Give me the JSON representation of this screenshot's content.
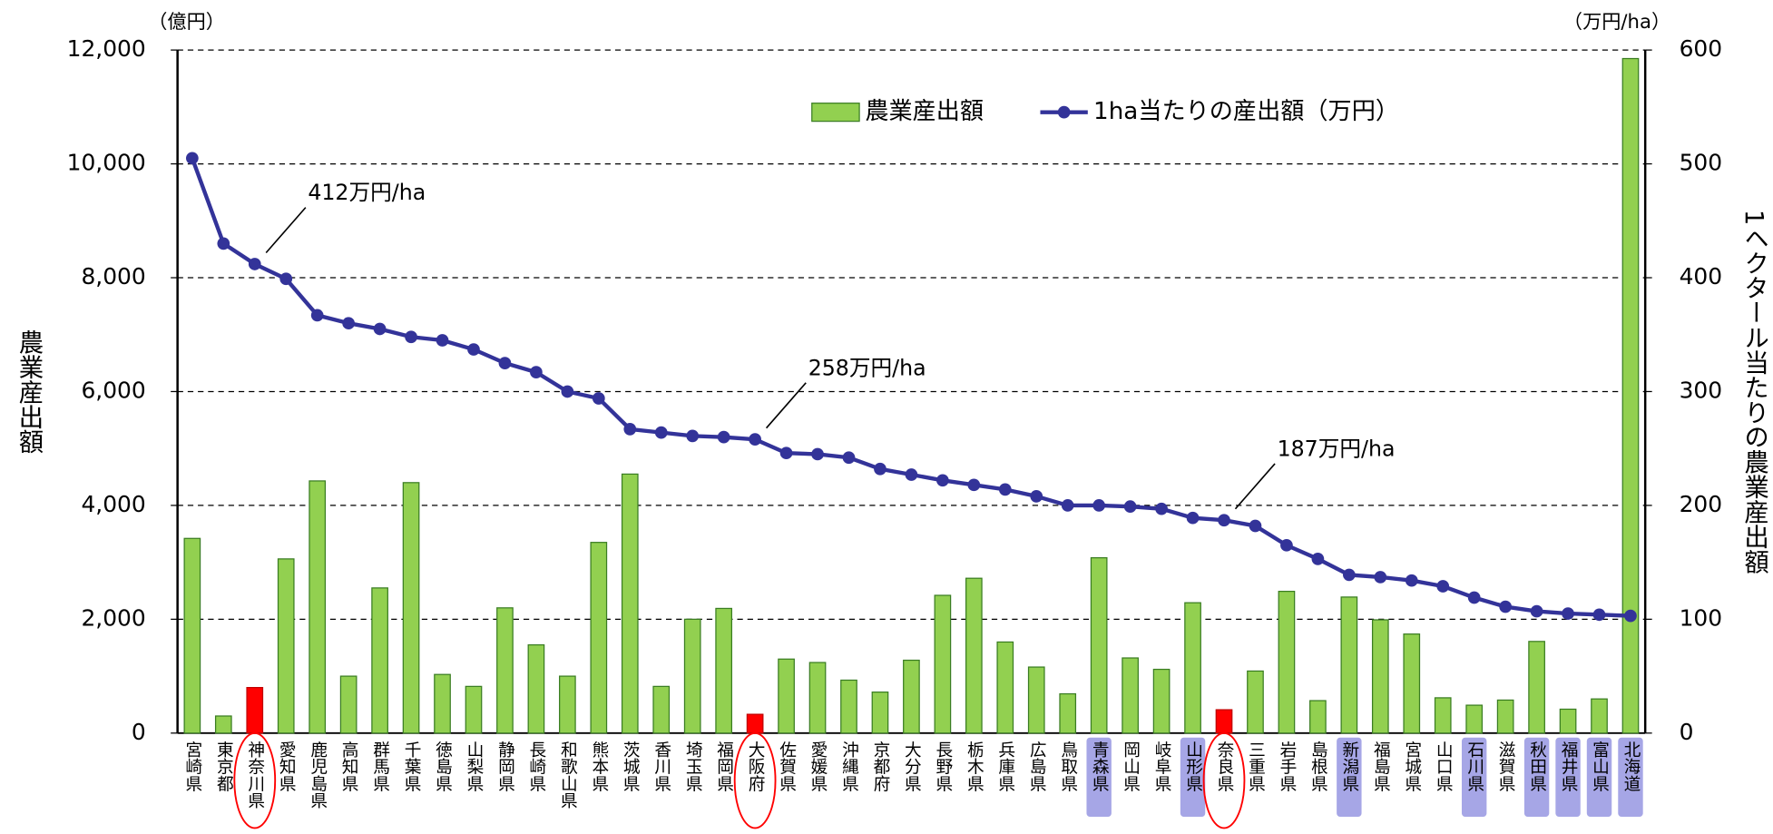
{
  "chart_data": {
    "type": "bar_line",
    "left_unit": "（億円）",
    "right_unit": "（万円/ha）",
    "y_label": "農業産出額",
    "y2_label": "1ヘクタール当たりの農業産出額",
    "categories": [
      "宮崎県",
      "東京都",
      "神奈川県",
      "愛知県",
      "鹿児島県",
      "高知県",
      "群馬県",
      "千葉県",
      "徳島県",
      "山梨県",
      "静岡県",
      "長崎県",
      "和歌山県",
      "熊本県",
      "茨城県",
      "香川県",
      "埼玉県",
      "福岡県",
      "大阪府",
      "佐賀県",
      "愛媛県",
      "沖縄県",
      "京都府",
      "大分県",
      "長野県",
      "栃木県",
      "兵庫県",
      "広島県",
      "鳥取県",
      "青森県",
      "岡山県",
      "岐阜県",
      "山形県",
      "奈良県",
      "三重県",
      "岩手県",
      "島根県",
      "新潟県",
      "福島県",
      "宮城県",
      "山口県",
      "石川県",
      "滋賀県",
      "秋田県",
      "福井県",
      "富山県",
      "北海道"
    ],
    "series": [
      {
        "name": "農業産出額",
        "color": "#92d050",
        "values": [
          3420,
          300,
          800,
          3060,
          4430,
          1000,
          2550,
          4400,
          1030,
          820,
          2200,
          1550,
          1000,
          3350,
          4550,
          820,
          2000,
          2190,
          330,
          1300,
          1240,
          930,
          720,
          1280,
          2420,
          2720,
          1600,
          1160,
          690,
          3080,
          1320,
          1120,
          2290,
          410,
          1090,
          2490,
          570,
          2390,
          1990,
          1740,
          620,
          490,
          580,
          1610,
          420,
          600,
          11850
        ]
      },
      {
        "name": "1ha当たりの産出額（万円）",
        "color": "#333399",
        "axis": "y2",
        "values": [
          505,
          430,
          412,
          399,
          367,
          360,
          355,
          348,
          345,
          337,
          325,
          317,
          300,
          294,
          267,
          264,
          261,
          260,
          258,
          246,
          245,
          242,
          232,
          227,
          222,
          218,
          214,
          208,
          200,
          200,
          199,
          197,
          189,
          187,
          182,
          165,
          153,
          139,
          137,
          134,
          129,
          119,
          111,
          107,
          105,
          104,
          103
        ]
      }
    ],
    "highlight_color": "#ff0000",
    "highlight": [
      2,
      18,
      33
    ],
    "shade_color": "#a6a6e6",
    "shade": [
      29,
      32,
      37,
      41,
      43,
      44,
      45,
      46
    ],
    "ylim": [
      0,
      12000
    ],
    "yticks": [
      0,
      {
        "value": 2000,
        "label": "2,000"
      },
      {
        "value": 4000,
        "label": "4,000"
      },
      {
        "value": 6000,
        "label": "6,000"
      },
      {
        "value": 8000,
        "label": "8,000"
      },
      {
        "value": 10000,
        "label": "10,000"
      },
      {
        "value": 12000,
        "label": "12,000"
      }
    ],
    "y2lim": [
      0,
      600
    ],
    "y2ticks": [
      0,
      100,
      200,
      300,
      400,
      500,
      600
    ],
    "grid": true,
    "annotations": [
      {
        "text": "412万円/ha",
        "index": 2
      },
      {
        "text": "258万円/ha",
        "index": 18
      },
      {
        "text": "187万円/ha",
        "index": 33
      }
    ]
  }
}
